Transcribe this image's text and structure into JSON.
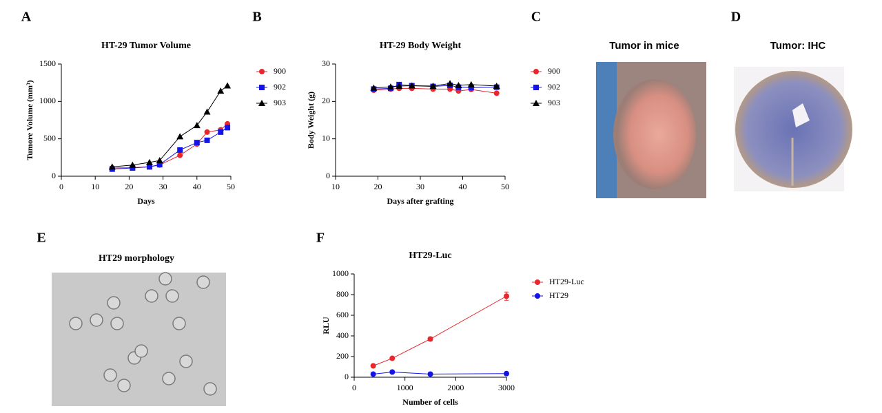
{
  "chart_data": [
    {
      "type": "line",
      "label": "A",
      "title": "HT-29 Tumor Volume",
      "x_label": "Days",
      "y_label": "Tumore Volume (mm³)",
      "x": [
        15,
        21,
        26,
        29,
        35,
        40,
        43,
        47,
        49
      ],
      "series": [
        {
          "name": "900",
          "color": "#e8262b",
          "marker": "circle",
          "values": [
            110,
            115,
            125,
            150,
            280,
            430,
            590,
            620,
            700
          ]
        },
        {
          "name": "902",
          "color": "#1414e6",
          "marker": "square",
          "values": [
            95,
            110,
            125,
            155,
            350,
            450,
            480,
            590,
            650
          ]
        },
        {
          "name": "903",
          "color": "#000000",
          "marker": "triangle",
          "values": [
            125,
            150,
            185,
            210,
            530,
            680,
            860,
            1140,
            1210
          ]
        }
      ],
      "xlim": [
        0,
        50
      ],
      "xticks": [
        0,
        10,
        20,
        30,
        40,
        50
      ],
      "ylim": [
        0,
        1500
      ],
      "yticks": [
        0,
        500,
        1000,
        1500
      ]
    },
    {
      "type": "line",
      "label": "B",
      "title": "HT-29 Body Weight",
      "x_label": "Days after grafting",
      "y_label": "Body Weight (g)",
      "x": [
        19,
        23,
        25,
        28,
        33,
        37,
        39,
        42,
        48
      ],
      "series": [
        {
          "name": "900",
          "color": "#e8262b",
          "marker": "circle",
          "values": [
            23,
            23.3,
            23.5,
            23.5,
            23.3,
            23.3,
            22.8,
            23.2,
            22.2
          ]
        },
        {
          "name": "902",
          "color": "#1414e6",
          "marker": "square",
          "values": [
            23.3,
            23.5,
            24.5,
            24.2,
            24,
            24.3,
            23.8,
            23.7,
            23.8
          ]
        },
        {
          "name": "903",
          "color": "#000000",
          "marker": "triangle",
          "values": [
            23.6,
            23.9,
            24.1,
            24.2,
            24.1,
            24.8,
            24.3,
            24.5,
            24.1
          ]
        }
      ],
      "xlim": [
        10,
        50
      ],
      "xticks": [
        10,
        20,
        30,
        40,
        50
      ],
      "ylim": [
        0,
        30
      ],
      "yticks": [
        0,
        10,
        20,
        30
      ]
    },
    {
      "type": "line",
      "label": "F",
      "title": "HT29-Luc",
      "x_label": "Number of cells",
      "y_label": "RLU",
      "x": [
        375,
        750,
        1500,
        3000
      ],
      "series": [
        {
          "name": "HT29-Luc",
          "color": "#e8262b",
          "marker": "circle",
          "values": [
            110,
            183,
            370,
            785
          ],
          "errors": [
            10,
            10,
            20,
            40
          ]
        },
        {
          "name": "HT29",
          "color": "#1414e6",
          "marker": "circle",
          "values": [
            30,
            50,
            30,
            35
          ],
          "errors": [
            5,
            5,
            5,
            5
          ]
        }
      ],
      "xlim": [
        0,
        3000
      ],
      "xticks": [
        0,
        1000,
        2000,
        3000
      ],
      "ylim": [
        0,
        1000
      ],
      "yticks": [
        0,
        200,
        400,
        600,
        800,
        1000
      ]
    }
  ],
  "images": [
    {
      "label": "C",
      "title": "Tumor in mice"
    },
    {
      "label": "D",
      "title": "Tumor: IHC"
    },
    {
      "label": "E",
      "title": "HT29 morphology"
    }
  ]
}
